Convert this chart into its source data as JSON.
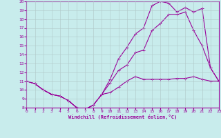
{
  "xlabel": "Windchill (Refroidissement éolien,°C)",
  "bg_color": "#c8ecec",
  "line_color": "#990099",
  "grid_color": "#b0c8c8",
  "xlim": [
    0,
    23
  ],
  "ylim": [
    8,
    20
  ],
  "xticks": [
    0,
    1,
    2,
    3,
    4,
    5,
    6,
    7,
    8,
    9,
    10,
    11,
    12,
    13,
    14,
    15,
    16,
    17,
    18,
    19,
    20,
    21,
    22,
    23
  ],
  "yticks": [
    8,
    9,
    10,
    11,
    12,
    13,
    14,
    15,
    16,
    17,
    18,
    19,
    20
  ],
  "line1_x": [
    0,
    1,
    2,
    3,
    4,
    5,
    6,
    7,
    8,
    9,
    10,
    11,
    12,
    13,
    14,
    15,
    16,
    17,
    18,
    19,
    20,
    21,
    22,
    23
  ],
  "line1_y": [
    11,
    10.7,
    10,
    9.5,
    9.3,
    8.8,
    8.0,
    7.8,
    8.3,
    9.5,
    9.7,
    10.3,
    11.0,
    11.5,
    11.2,
    11.2,
    11.2,
    11.2,
    11.3,
    11.3,
    11.5,
    11.2,
    11.0,
    11.0
  ],
  "line2_x": [
    0,
    1,
    2,
    3,
    4,
    5,
    6,
    7,
    8,
    9,
    10,
    11,
    12,
    13,
    14,
    15,
    16,
    17,
    18,
    19,
    20,
    21,
    22,
    23
  ],
  "line2_y": [
    11,
    10.7,
    10,
    9.5,
    9.3,
    8.8,
    8.0,
    7.8,
    8.3,
    9.5,
    10.8,
    12.2,
    12.8,
    14.2,
    14.5,
    16.7,
    17.5,
    18.5,
    18.5,
    18.8,
    16.7,
    15.0,
    12.5,
    11.0
  ],
  "line3_x": [
    0,
    1,
    2,
    3,
    4,
    5,
    6,
    7,
    8,
    9,
    10,
    11,
    12,
    13,
    14,
    15,
    16,
    17,
    18,
    19,
    20,
    21,
    22,
    23
  ],
  "line3_y": [
    11,
    10.7,
    10,
    9.5,
    9.3,
    8.8,
    8.0,
    7.8,
    8.3,
    9.5,
    11.2,
    13.5,
    14.8,
    16.3,
    17.0,
    19.5,
    20.0,
    19.8,
    18.8,
    19.3,
    18.8,
    19.2,
    12.5,
    11.0
  ]
}
